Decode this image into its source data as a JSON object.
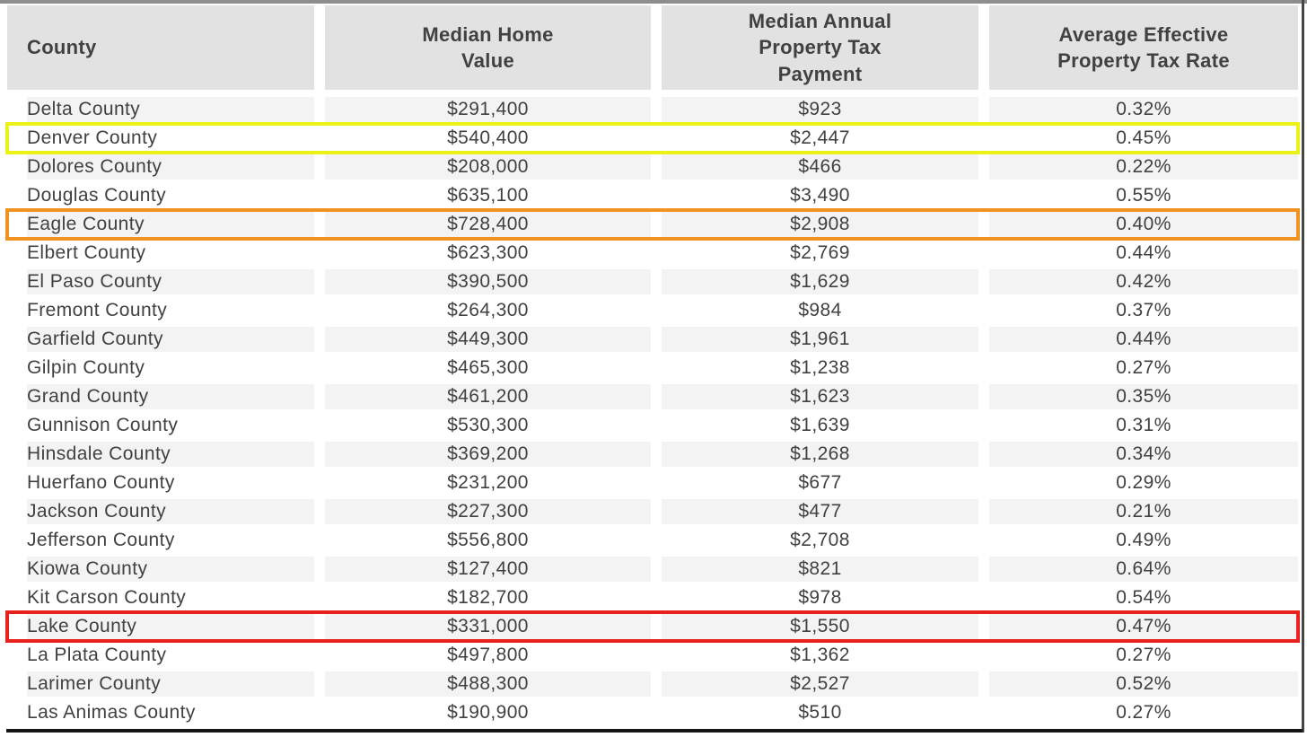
{
  "chart_data": {
    "type": "table",
    "title": "",
    "columns": [
      "County",
      "Median Home Value",
      "Median Annual Property Tax Payment",
      "Average Effective Property Tax Rate"
    ],
    "rows": [
      {
        "county": "Delta County",
        "median_home_value": "$291,400",
        "median_annual_property_tax_payment": "$923",
        "average_effective_property_tax_rate": "0.32%",
        "highlight": null
      },
      {
        "county": "Denver County",
        "median_home_value": "$540,400",
        "median_annual_property_tax_payment": "$2,447",
        "average_effective_property_tax_rate": "0.45%",
        "highlight": "yellow"
      },
      {
        "county": "Dolores County",
        "median_home_value": "$208,000",
        "median_annual_property_tax_payment": "$466",
        "average_effective_property_tax_rate": "0.22%",
        "highlight": null
      },
      {
        "county": "Douglas County",
        "median_home_value": "$635,100",
        "median_annual_property_tax_payment": "$3,490",
        "average_effective_property_tax_rate": "0.55%",
        "highlight": null
      },
      {
        "county": "Eagle County",
        "median_home_value": "$728,400",
        "median_annual_property_tax_payment": "$2,908",
        "average_effective_property_tax_rate": "0.40%",
        "highlight": "orange"
      },
      {
        "county": "Elbert County",
        "median_home_value": "$623,300",
        "median_annual_property_tax_payment": "$2,769",
        "average_effective_property_tax_rate": "0.44%",
        "highlight": null
      },
      {
        "county": "El Paso County",
        "median_home_value": "$390,500",
        "median_annual_property_tax_payment": "$1,629",
        "average_effective_property_tax_rate": "0.42%",
        "highlight": null
      },
      {
        "county": "Fremont County",
        "median_home_value": "$264,300",
        "median_annual_property_tax_payment": "$984",
        "average_effective_property_tax_rate": "0.37%",
        "highlight": null
      },
      {
        "county": "Garfield County",
        "median_home_value": "$449,300",
        "median_annual_property_tax_payment": "$1,961",
        "average_effective_property_tax_rate": "0.44%",
        "highlight": null
      },
      {
        "county": "Gilpin County",
        "median_home_value": "$465,300",
        "median_annual_property_tax_payment": "$1,238",
        "average_effective_property_tax_rate": "0.27%",
        "highlight": null
      },
      {
        "county": "Grand County",
        "median_home_value": "$461,200",
        "median_annual_property_tax_payment": "$1,623",
        "average_effective_property_tax_rate": "0.35%",
        "highlight": null
      },
      {
        "county": "Gunnison County",
        "median_home_value": "$530,300",
        "median_annual_property_tax_payment": "$1,639",
        "average_effective_property_tax_rate": "0.31%",
        "highlight": null
      },
      {
        "county": "Hinsdale County",
        "median_home_value": "$369,200",
        "median_annual_property_tax_payment": "$1,268",
        "average_effective_property_tax_rate": "0.34%",
        "highlight": null
      },
      {
        "county": "Huerfano County",
        "median_home_value": "$231,200",
        "median_annual_property_tax_payment": "$677",
        "average_effective_property_tax_rate": "0.29%",
        "highlight": null
      },
      {
        "county": "Jackson County",
        "median_home_value": "$227,300",
        "median_annual_property_tax_payment": "$477",
        "average_effective_property_tax_rate": "0.21%",
        "highlight": null
      },
      {
        "county": "Jefferson County",
        "median_home_value": "$556,800",
        "median_annual_property_tax_payment": "$2,708",
        "average_effective_property_tax_rate": "0.49%",
        "highlight": null
      },
      {
        "county": "Kiowa County",
        "median_home_value": "$127,400",
        "median_annual_property_tax_payment": "$821",
        "average_effective_property_tax_rate": "0.64%",
        "highlight": null
      },
      {
        "county": "Kit Carson County",
        "median_home_value": "$182,700",
        "median_annual_property_tax_payment": "$978",
        "average_effective_property_tax_rate": "0.54%",
        "highlight": null
      },
      {
        "county": "Lake County",
        "median_home_value": "$331,000",
        "median_annual_property_tax_payment": "$1,550",
        "average_effective_property_tax_rate": "0.47%",
        "highlight": "red"
      },
      {
        "county": "La Plata County",
        "median_home_value": "$497,800",
        "median_annual_property_tax_payment": "$1,362",
        "average_effective_property_tax_rate": "0.27%",
        "highlight": null
      },
      {
        "county": "Larimer County",
        "median_home_value": "$488,300",
        "median_annual_property_tax_payment": "$2,527",
        "average_effective_property_tax_rate": "0.52%",
        "highlight": null
      },
      {
        "county": "Las Animas County",
        "median_home_value": "$190,900",
        "median_annual_property_tax_payment": "$510",
        "average_effective_property_tax_rate": "0.27%",
        "highlight": null
      }
    ],
    "highlighted_rows": [
      {
        "county": "Denver County",
        "highlight_color": "yellow"
      },
      {
        "county": "Eagle County",
        "highlight_color": "orange"
      },
      {
        "county": "Lake County",
        "highlight_color": "red"
      }
    ],
    "layout": {
      "striped": true,
      "first_row_striped": true,
      "grid": "off",
      "legend": "none"
    }
  },
  "colors": {
    "header_bg": "#e2e2e2",
    "row_stripe_bg": "#f3f3f3",
    "text": "#414141",
    "highlight_yellow": "#ebf216",
    "highlight_orange": "#f09321",
    "highlight_red": "#e9211e",
    "top_border": "#8d8d8d",
    "bottom_border": "#141414",
    "scrollbar_thumb": "#454545"
  }
}
